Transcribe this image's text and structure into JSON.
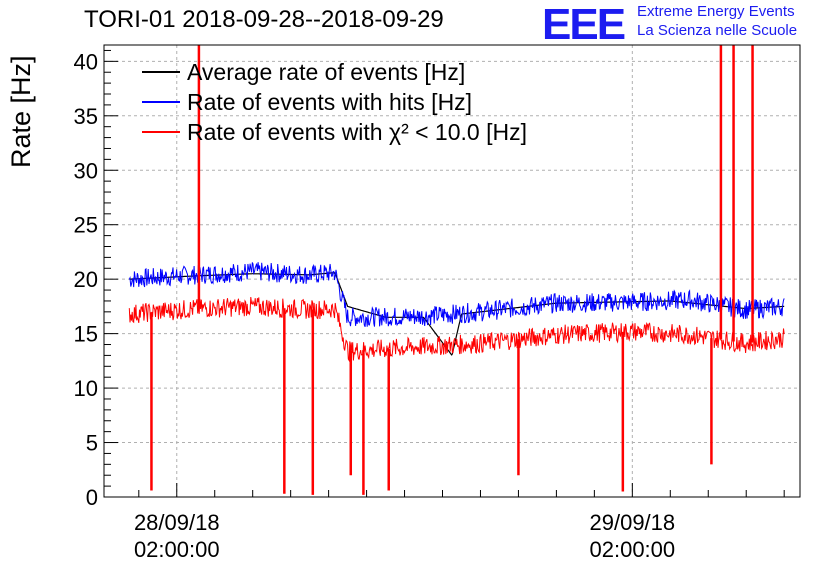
{
  "header": {
    "title": "TORI-01 2018-09-28--2018-09-29",
    "logo": "EEE",
    "logo_line1": "Extreme Energy Events",
    "logo_line2": "La Scienza nelle Scuole"
  },
  "chart_data": {
    "type": "line",
    "title": "TORI-01 2018-09-28--2018-09-29",
    "ylabel": "Rate [Hz]",
    "ylim": [
      0,
      41.5
    ],
    "yticks": [
      0,
      5,
      10,
      15,
      20,
      25,
      30,
      35,
      40
    ],
    "ytick_labels": [
      "0",
      "5",
      "10",
      "15",
      "20",
      "25",
      "30",
      "35",
      "40"
    ],
    "xlim": [
      "2018-09-27 22:10",
      "2018-09-29 10:50"
    ],
    "xticks": [
      {
        "at": "2018-09-28 02:00",
        "label_date": "28/09/18",
        "label_time": "02:00:00"
      },
      {
        "at": "2018-09-29 02:00",
        "label_date": "29/09/18",
        "label_time": "02:00:00"
      }
    ],
    "grid": true,
    "legend_position": "top-left",
    "legend": [
      {
        "label": "Average rate of events [Hz]",
        "color": "#000000"
      },
      {
        "label": "Rate of events with hits [Hz]",
        "color": "#0000ff"
      },
      {
        "label": "Rate of events with χ² < 10.0 [Hz]",
        "color": "#ff0000"
      }
    ],
    "series": [
      {
        "name": "Average rate of events [Hz]",
        "color": "#000000",
        "x": [
          "2018-09-27 23:30",
          "2018-09-28 03:00",
          "2018-09-28 06:00",
          "2018-09-28 09:00",
          "2018-09-28 10:20",
          "2018-09-28 11:00",
          "2018-09-28 13:00",
          "2018-09-28 15:00",
          "2018-09-28 16:30",
          "2018-09-28 17:00",
          "2018-09-28 22:00",
          "2018-09-29 04:00",
          "2018-09-29 08:00",
          "2018-09-29 10:00"
        ],
        "y": [
          20.0,
          20.3,
          20.5,
          20.4,
          20.6,
          17.5,
          16.5,
          16.5,
          13.0,
          16.8,
          17.8,
          18.0,
          17.3,
          17.5
        ]
      },
      {
        "name": "Rate of events with hits [Hz]",
        "color": "#0000ff",
        "x": [
          "2018-09-27 23:30",
          "2018-09-28 03:00",
          "2018-09-28 06:00",
          "2018-09-28 09:00",
          "2018-09-28 10:20",
          "2018-09-28 11:00",
          "2018-09-28 15:00",
          "2018-09-28 18:00",
          "2018-09-28 22:00",
          "2018-09-29 02:00",
          "2018-09-29 05:00",
          "2018-09-29 08:00",
          "2018-09-29 10:00"
        ],
        "y": [
          20.0,
          20.4,
          20.7,
          20.4,
          20.6,
          16.5,
          16.6,
          17.0,
          17.8,
          17.9,
          18.1,
          17.2,
          17.5
        ]
      },
      {
        "name": "Rate of events with χ² < 10.0 [Hz]",
        "color": "#ff0000",
        "x": [
          "2018-09-27 23:30",
          "2018-09-28 03:00",
          "2018-09-28 06:00",
          "2018-09-28 09:00",
          "2018-09-28 10:20",
          "2018-09-28 11:00",
          "2018-09-28 15:00",
          "2018-09-28 18:00",
          "2018-09-28 22:00",
          "2018-09-29 02:00",
          "2018-09-29 05:00",
          "2018-09-29 08:00",
          "2018-09-29 10:00"
        ],
        "y": [
          16.8,
          17.3,
          17.5,
          17.2,
          17.3,
          13.4,
          13.8,
          14.1,
          14.9,
          15.2,
          14.9,
          14.1,
          14.6
        ]
      }
    ],
    "spikes": [
      {
        "t": "2018-09-28 00:40",
        "y": 0.6
      },
      {
        "t": "2018-09-28 03:10",
        "y": 41.5
      },
      {
        "t": "2018-09-28 07:40",
        "y": 0.3
      },
      {
        "t": "2018-09-28 09:10",
        "y": 0.2
      },
      {
        "t": "2018-09-28 11:10",
        "y": 2.0
      },
      {
        "t": "2018-09-28 11:50",
        "y": 0.2
      },
      {
        "t": "2018-09-28 13:10",
        "y": 0.6
      },
      {
        "t": "2018-09-28 20:00",
        "y": 2.0
      },
      {
        "t": "2018-09-29 01:30",
        "y": 0.5
      },
      {
        "t": "2018-09-29 06:10",
        "y": 3.0
      },
      {
        "t": "2018-09-29 06:40",
        "y": 41.5
      },
      {
        "t": "2018-09-29 07:20",
        "y": 41.5
      },
      {
        "t": "2018-09-29 08:20",
        "y": 41.5
      }
    ]
  }
}
